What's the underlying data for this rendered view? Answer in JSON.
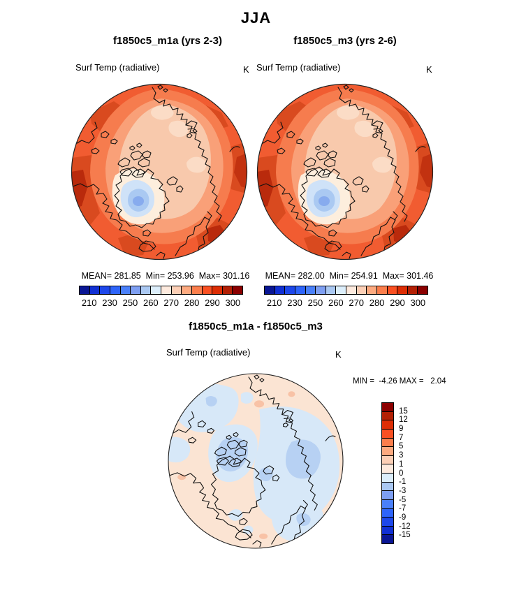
{
  "title": "JJA",
  "panels": {
    "m1a": {
      "title": "f1850c5_m1a (yrs 2-3)",
      "var_label": "Surf Temp (radiative)",
      "units": "K",
      "stats": "MEAN= 281.85  Min= 253.96  Max= 301.16"
    },
    "m3": {
      "title": "f1850c5_m3 (yrs 2-6)",
      "var_label": "Surf Temp (radiative)",
      "units": "K",
      "stats": "MEAN= 282.00  Min= 254.91  Max= 301.46"
    },
    "diff": {
      "title": "f1850c5_m1a - f1850c5_m3",
      "var_label": "Surf Temp (radiative)",
      "units": "K",
      "minmax": "MIN =  -4.26 MAX =   2.04"
    }
  },
  "chart_data": [
    {
      "type": "heatmap",
      "subtype": "polar-stereographic-map",
      "season": "JJA",
      "title": "f1850c5_m1a (yrs 2-3)",
      "variable": "Surf Temp (radiative)",
      "units": "K",
      "mean": 281.85,
      "min": 253.96,
      "max": 301.16,
      "colorbar": {
        "orientation": "horizontal",
        "tick_labels": [
          210,
          230,
          250,
          260,
          270,
          280,
          290,
          300
        ],
        "colors": [
          "#0a1694",
          "#1130d3",
          "#1d47ea",
          "#2e64fa",
          "#4a80fa",
          "#7e9ff2",
          "#aac8f2",
          "#dceefb",
          "#fdeade",
          "#fccfb6",
          "#fdaa80",
          "#fb7e4c",
          "#fa5022",
          "#dd2e05",
          "#b32005",
          "#8b0000"
        ]
      }
    },
    {
      "type": "heatmap",
      "subtype": "polar-stereographic-map",
      "season": "JJA",
      "title": "f1850c5_m3 (yrs 2-6)",
      "variable": "Surf Temp (radiative)",
      "units": "K",
      "mean": 282.0,
      "min": 254.91,
      "max": 301.46,
      "colorbar": {
        "orientation": "horizontal",
        "tick_labels": [
          210,
          230,
          250,
          260,
          270,
          280,
          290,
          300
        ],
        "colors": [
          "#0a1694",
          "#1130d3",
          "#1d47ea",
          "#2e64fa",
          "#4a80fa",
          "#7e9ff2",
          "#aac8f2",
          "#dceefb",
          "#fdeade",
          "#fccfb6",
          "#fdaa80",
          "#fb7e4c",
          "#fa5022",
          "#dd2e05",
          "#b32005",
          "#8b0000"
        ]
      }
    },
    {
      "type": "heatmap",
      "subtype": "polar-stereographic-map",
      "title": "f1850c5_m1a - f1850c5_m3",
      "variable": "Surf Temp (radiative)",
      "units": "K",
      "min": -4.26,
      "max": 2.04,
      "colorbar": {
        "orientation": "vertical",
        "tick_labels": [
          15,
          12,
          9,
          7,
          5,
          3,
          1,
          0,
          -1,
          -3,
          -5,
          -7,
          -9,
          -12,
          -15
        ],
        "colors": [
          "#8b0000",
          "#b32005",
          "#dd2e05",
          "#fa5022",
          "#fb7e4c",
          "#fdaa80",
          "#fccfb6",
          "#fdeade",
          "#dceefb",
          "#aac8f2",
          "#7e9ff2",
          "#4a80fa",
          "#2e64fa",
          "#1d47ea",
          "#1130d3",
          "#0a1694"
        ]
      }
    }
  ]
}
